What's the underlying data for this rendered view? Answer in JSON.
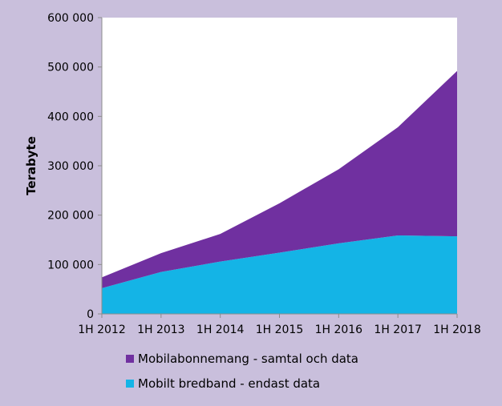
{
  "chart_data": {
    "type": "area",
    "stacked": true,
    "categories": [
      "1H 2012",
      "1H 2013",
      "1H 2014",
      "1H 2015",
      "1H 2016",
      "1H 2017",
      "1H 2018"
    ],
    "series": [
      {
        "name": "Mobilt bredband - endast data",
        "color": "#14b4e6",
        "values": [
          52000,
          85000,
          106000,
          124000,
          143000,
          159000,
          157000
        ]
      },
      {
        "name": "Mobilabonnemang - samtal och data",
        "color": "#7030a0",
        "values": [
          22000,
          38000,
          56000,
          100000,
          150000,
          219000,
          335000
        ]
      }
    ],
    "ylabel": "Terabyte",
    "xlabel": "",
    "ylim": [
      0,
      600000
    ],
    "yticks": [
      0,
      100000,
      200000,
      300000,
      400000,
      500000,
      600000
    ],
    "ytick_labels": [
      "0",
      "100 000",
      "200 000",
      "300 000",
      "400 000",
      "500 000",
      "600 000"
    ],
    "legend": [
      "Mobilabonnemang - samtal och data",
      "Mobilt bredband - endast data"
    ],
    "legend_position": "bottom",
    "grid": false,
    "plot_background": "#ffffff",
    "frame_background": "#c9bfdc"
  }
}
